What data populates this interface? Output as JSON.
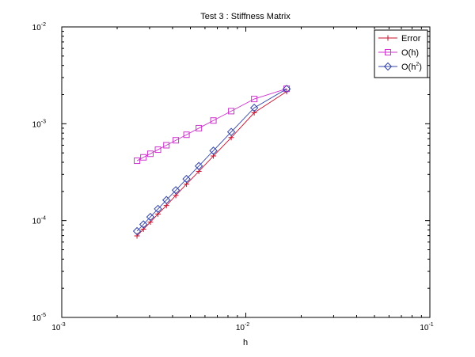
{
  "chart_data": {
    "type": "line",
    "title": "Test 3 : Stiffness Matrix",
    "xlabel": "h",
    "ylabel": "",
    "xscale": "log",
    "yscale": "log",
    "xlim": [
      0.001,
      0.1
    ],
    "ylim": [
      1e-05,
      0.01
    ],
    "x_ticks": [
      {
        "base": "10",
        "exp": "-3"
      },
      {
        "base": "10",
        "exp": "-2"
      },
      {
        "base": "10",
        "exp": "-1"
      }
    ],
    "y_ticks": [
      {
        "base": "10",
        "exp": "-5"
      },
      {
        "base": "10",
        "exp": "-4"
      },
      {
        "base": "10",
        "exp": "-3"
      },
      {
        "base": "10",
        "exp": "-2"
      }
    ],
    "grid": false,
    "legend_position": "top-right",
    "x": [
      0.0025641,
      0.0027778,
      0.0030303,
      0.0033333,
      0.0037037,
      0.0041667,
      0.0047619,
      0.0055556,
      0.0066667,
      0.0083333,
      0.0111111,
      0.0166667
    ],
    "series": [
      {
        "name": "Error",
        "color": "#c8102e",
        "marker": "plus",
        "values": [
          6.95e-05,
          8.15e-05,
          9.65e-05,
          0.000117,
          0.000143,
          0.000182,
          0.000238,
          0.000322,
          0.000465,
          0.00072,
          0.0013,
          0.00215
        ]
      },
      {
        "name": "O(h)",
        "color": "#cc33cc",
        "marker": "square",
        "values": [
          0.000415,
          0.00045,
          0.00049,
          0.00054,
          0.0006,
          0.000675,
          0.00077,
          0.0009,
          0.00108,
          0.00135,
          0.0018,
          0.0023
        ]
      },
      {
        "name": "O(h²)",
        "legend_base": "O(h",
        "legend_sup": "2",
        "legend_tail": ")",
        "color": "#3344aa",
        "marker": "diamond",
        "values": [
          7.78e-05,
          9.13e-05,
          0.000109,
          0.000132,
          0.000163,
          0.000206,
          0.000269,
          0.000366,
          0.000527,
          0.000823,
          0.00146,
          0.00229
        ]
      }
    ]
  }
}
